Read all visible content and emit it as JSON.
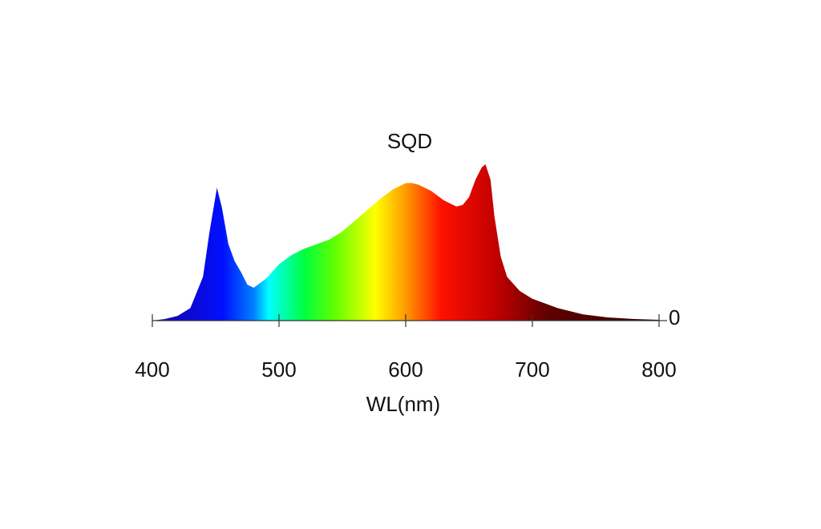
{
  "chart_data": {
    "type": "area",
    "title": "SQD",
    "x_label": "WL(nm)",
    "x": [
      400,
      410,
      420,
      430,
      440,
      445,
      451,
      455,
      460,
      465,
      470,
      475,
      480,
      490,
      500,
      510,
      520,
      530,
      540,
      550,
      560,
      570,
      580,
      590,
      600,
      605,
      610,
      620,
      630,
      640,
      645,
      650,
      655,
      660,
      663,
      667,
      670,
      675,
      680,
      690,
      700,
      720,
      740,
      760,
      780,
      800
    ],
    "values": [
      0,
      0.01,
      0.03,
      0.08,
      0.28,
      0.56,
      0.85,
      0.72,
      0.49,
      0.38,
      0.31,
      0.23,
      0.21,
      0.27,
      0.36,
      0.42,
      0.46,
      0.49,
      0.52,
      0.57,
      0.64,
      0.71,
      0.78,
      0.84,
      0.88,
      0.88,
      0.87,
      0.83,
      0.77,
      0.73,
      0.74,
      0.79,
      0.9,
      0.98,
      1.0,
      0.9,
      0.67,
      0.41,
      0.28,
      0.19,
      0.14,
      0.08,
      0.04,
      0.02,
      0.01,
      0.005
    ],
    "xlim": [
      400,
      800
    ],
    "xticks": [
      400,
      500,
      600,
      700,
      800
    ],
    "ylim": [
      0,
      1
    ],
    "yticks": [
      0
    ]
  }
}
